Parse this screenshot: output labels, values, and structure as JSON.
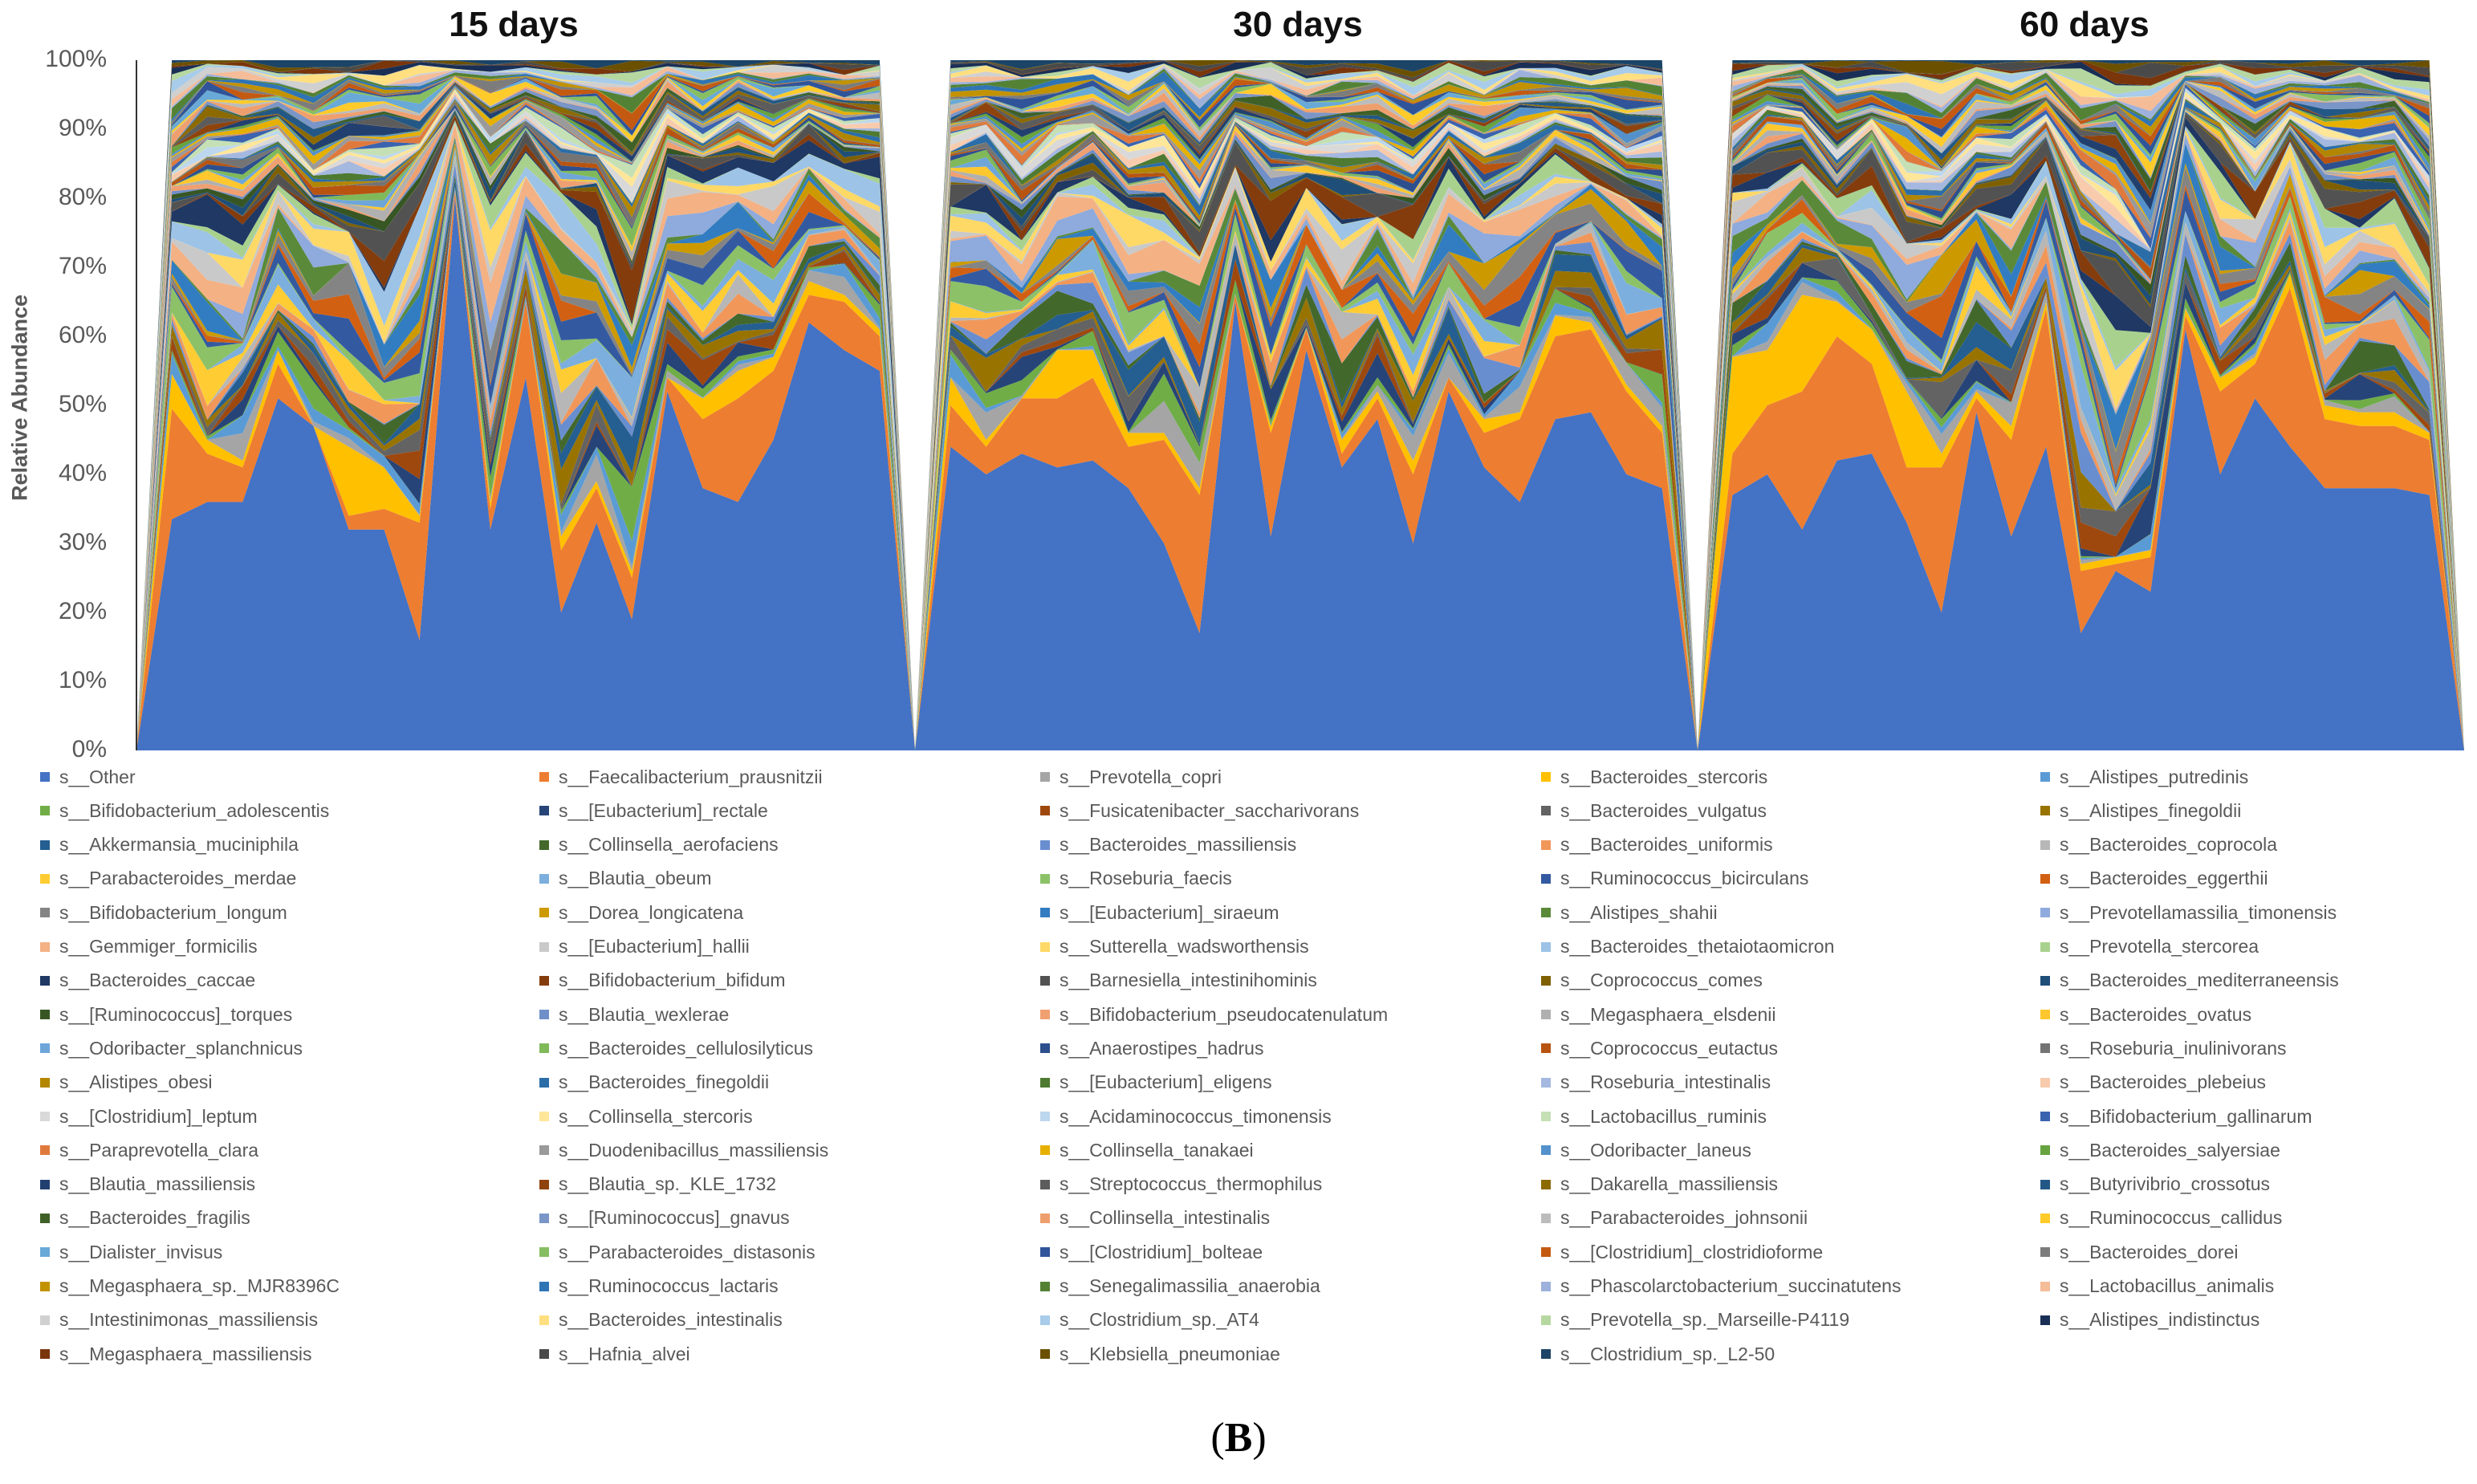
{
  "figure_label": "(B)",
  "figure_label_letter": "B",
  "chart_data": {
    "type": "area",
    "stacked": true,
    "percent": true,
    "ylabel": "Relative Abundance",
    "yticks": [
      "0%",
      "10%",
      "20%",
      "30%",
      "40%",
      "50%",
      "60%",
      "70%",
      "80%",
      "90%",
      "100%"
    ],
    "ylim": [
      0,
      100
    ],
    "grid": false,
    "legend_position": "bottom",
    "panels": [
      {
        "title": "15 days",
        "samples": 23,
        "values": {
          "s__Other": [
            0,
            33.5,
            36,
            36,
            51,
            47,
            32,
            32,
            16,
            80,
            32,
            54,
            20,
            33,
            19,
            52,
            38,
            36,
            45,
            62,
            58,
            55,
            0
          ],
          "s__Faecalibacterium_prausnitzii": [
            0,
            16,
            7,
            5,
            5,
            0,
            2,
            3,
            17,
            1,
            3,
            11,
            9,
            5,
            6,
            2,
            10,
            15,
            10,
            4,
            7,
            5,
            0
          ],
          "s__Bacteroides_stercoris": [
            0,
            5,
            2,
            1,
            2,
            0,
            10,
            6,
            1,
            0,
            1,
            0,
            2,
            1,
            1,
            0,
            3,
            4,
            2,
            2,
            1,
            1,
            0
          ]
        }
      },
      {
        "title": "30 days",
        "samples": 23,
        "values": {
          "s__Other": [
            0,
            44,
            40,
            43,
            41,
            42,
            38,
            30,
            17,
            65,
            31,
            58,
            41,
            48,
            30,
            52,
            41,
            36,
            48,
            49,
            40,
            38,
            0
          ],
          "s__Faecalibacterium_prausnitzii": [
            0,
            6,
            4,
            8,
            10,
            12,
            6,
            15,
            20,
            1,
            15,
            3,
            2,
            3,
            10,
            2,
            5,
            12,
            12,
            12,
            12,
            8,
            0
          ],
          "s__Bacteroides_stercoris": [
            0,
            4,
            1,
            0,
            7,
            4,
            2,
            1,
            1,
            0,
            1,
            0,
            2,
            1,
            2,
            0,
            2,
            1,
            3,
            1,
            1,
            1,
            0
          ]
        }
      },
      {
        "title": "60 days",
        "samples": 23,
        "values": {
          "s__Other": [
            0,
            37,
            40,
            32,
            42,
            43,
            33,
            20,
            49,
            31,
            44,
            17,
            26,
            23,
            61,
            40,
            51,
            44,
            38,
            38,
            38,
            37,
            0
          ],
          "s__Faecalibacterium_prausnitzii": [
            0,
            6,
            10,
            20,
            18,
            13,
            8,
            21,
            2,
            14,
            20,
            9,
            1,
            5,
            2,
            12,
            5,
            23,
            10,
            9,
            9,
            8,
            0
          ],
          "s__Bacteroides_stercoris": [
            0,
            14,
            8,
            14,
            5,
            5,
            11,
            2,
            1,
            2,
            1,
            1,
            1,
            1,
            1,
            2,
            1,
            2,
            2,
            2,
            2,
            1,
            0
          ]
        }
      }
    ],
    "legend": [
      {
        "label": "s__Other",
        "color": "#4472c4"
      },
      {
        "label": "s__Faecalibacterium_prausnitzii",
        "color": "#ed7d31"
      },
      {
        "label": "s__Prevotella_copri",
        "color": "#a5a5a5"
      },
      {
        "label": "s__Bacteroides_stercoris",
        "color": "#ffc000"
      },
      {
        "label": "s__Alistipes_putredinis",
        "color": "#5b9bd5"
      },
      {
        "label": "s__Bifidobacterium_adolescentis",
        "color": "#70ad47"
      },
      {
        "label": "s__[Eubacterium]_rectale",
        "color": "#264478"
      },
      {
        "label": "s__Fusicatenibacter_saccharivorans",
        "color": "#9e480e"
      },
      {
        "label": "s__Bacteroides_vulgatus",
        "color": "#636363"
      },
      {
        "label": "s__Alistipes_finegoldii",
        "color": "#997300"
      },
      {
        "label": "s__Akkermansia_muciniphila",
        "color": "#255e91"
      },
      {
        "label": "s__Collinsella_aerofaciens",
        "color": "#43682b"
      },
      {
        "label": "s__Bacteroides_massiliensis",
        "color": "#698ed0"
      },
      {
        "label": "s__Bacteroides_uniformis",
        "color": "#f1975a"
      },
      {
        "label": "s__Bacteroides_coprocola",
        "color": "#b7b7b7"
      },
      {
        "label": "s__Parabacteroides_merdae",
        "color": "#ffcd33"
      },
      {
        "label": "s__Blautia_obeum",
        "color": "#7cafdd"
      },
      {
        "label": "s__Roseburia_faecis",
        "color": "#8cc168"
      },
      {
        "label": "s__Ruminococcus_bicirculans",
        "color": "#335aa1"
      },
      {
        "label": "s__Bacteroides_eggerthii",
        "color": "#d26012"
      },
      {
        "label": "s__Bifidobacterium_longum",
        "color": "#848484"
      },
      {
        "label": "s__Dorea_longicatena",
        "color": "#cc9a00"
      },
      {
        "label": "s__[Eubacterium]_siraeum",
        "color": "#327dc2"
      },
      {
        "label": "s__Alistipes_shahii",
        "color": "#5a8a39"
      },
      {
        "label": "s__Prevotellamassilia_timonensis",
        "color": "#8faadc"
      },
      {
        "label": "s__Gemmiger_formicilis",
        "color": "#f4b183"
      },
      {
        "label": "s__[Eubacterium]_hallii",
        "color": "#c9c9c9"
      },
      {
        "label": "s__Sutterella_wadsworthensis",
        "color": "#ffd966"
      },
      {
        "label": "s__Bacteroides_thetaiotaomicron",
        "color": "#9dc3e6"
      },
      {
        "label": "s__Prevotella_stercorea",
        "color": "#a9d18e"
      },
      {
        "label": "s__Bacteroides_caccae",
        "color": "#1f3864"
      },
      {
        "label": "s__Bifidobacterium_bifidum",
        "color": "#843c0c"
      },
      {
        "label": "s__Barnesiella_intestinihominis",
        "color": "#525252"
      },
      {
        "label": "s__Coprococcus_comes",
        "color": "#7f6000"
      },
      {
        "label": "s__Bacteroides_mediterraneensis",
        "color": "#1f4e79"
      },
      {
        "label": "s__[Ruminococcus]_torques",
        "color": "#375623"
      },
      {
        "label": "s__Blautia_wexlerae",
        "color": "#6f8fc9"
      },
      {
        "label": "s__Bifidobacterium_pseudocatenulatum",
        "color": "#f0a070"
      },
      {
        "label": "s__Megasphaera_elsdenii",
        "color": "#b0b0b0"
      },
      {
        "label": "s__Bacteroides_ovatus",
        "color": "#ffc72e"
      },
      {
        "label": "s__Odoribacter_splanchnicus",
        "color": "#6ea6da"
      },
      {
        "label": "s__Bacteroides_cellulosilyticus",
        "color": "#80b95a"
      },
      {
        "label": "s__Anaerostipes_hadrus",
        "color": "#2d4f8e"
      },
      {
        "label": "s__Coprococcus_eutactus",
        "color": "#b85410"
      },
      {
        "label": "s__Roseburia_inulinivorans",
        "color": "#747474"
      },
      {
        "label": "s__Alistipes_obesi",
        "color": "#b38600"
      },
      {
        "label": "s__Bacteroides_finegoldii",
        "color": "#2b6da9"
      },
      {
        "label": "s__[Eubacterium]_eligens",
        "color": "#4e7a31"
      },
      {
        "label": "s__Roseburia_intestinalis",
        "color": "#a4b8e0"
      },
      {
        "label": "s__Bacteroides_plebeius",
        "color": "#f8cbad"
      },
      {
        "label": "s__[Clostridium]_leptum",
        "color": "#d9d9d9"
      },
      {
        "label": "s__Collinsella_stercoris",
        "color": "#ffe699"
      },
      {
        "label": "s__Acidaminococcus_timonensis",
        "color": "#bdd7ee"
      },
      {
        "label": "s__Lactobacillus_ruminis",
        "color": "#c5e0b4"
      },
      {
        "label": "s__Bifidobacterium_gallinarum",
        "color": "#3a63b0"
      },
      {
        "label": "s__Paraprevotella_clara",
        "color": "#e07a3c"
      },
      {
        "label": "s__Duodenibacillus_massiliensis",
        "color": "#9a9a9a"
      },
      {
        "label": "s__Collinsella_tanakaei",
        "color": "#e6b000"
      },
      {
        "label": "s__Odoribacter_laneus",
        "color": "#5491cc"
      },
      {
        "label": "s__Bacteroides_salyersiae",
        "color": "#67a33f"
      },
      {
        "label": "s__Blautia_massiliensis",
        "color": "#22406f"
      },
      {
        "label": "s__Blautia_sp._KLE_1732",
        "color": "#8f430d"
      },
      {
        "label": "s__Streptococcus_thermophilus",
        "color": "#5c5c5c"
      },
      {
        "label": "s__Dakarella_massiliensis",
        "color": "#8c6a00"
      },
      {
        "label": "s__Butyrivibrio_crossotus",
        "color": "#235886"
      },
      {
        "label": "s__Bacteroides_fragilis",
        "color": "#3f6127"
      },
      {
        "label": "s__[Ruminococcus]_gnavus",
        "color": "#7a95c8"
      },
      {
        "label": "s__Collinsella_intestinalis",
        "color": "#ee9f6d"
      },
      {
        "label": "s__Parabacteroides_johnsonii",
        "color": "#bcbcbc"
      },
      {
        "label": "s__Ruminococcus_callidus",
        "color": "#ffcb2a"
      },
      {
        "label": "s__Dialister_invisus",
        "color": "#68a9d8"
      },
      {
        "label": "s__Parabacteroides_distasonis",
        "color": "#87be62"
      },
      {
        "label": "s__[Clostridium]_bolteae",
        "color": "#30549a"
      },
      {
        "label": "s__[Clostridium]_clostridioforme",
        "color": "#c45a11"
      },
      {
        "label": "s__Bacteroides_dorei",
        "color": "#7c7c7c"
      },
      {
        "label": "s__Megasphaera_sp._MJR8396C",
        "color": "#c29200"
      },
      {
        "label": "s__Ruminococcus_lactaris",
        "color": "#2f74b5"
      },
      {
        "label": "s__Senegalimassilia_anaerobia",
        "color": "#548235"
      },
      {
        "label": "s__Phascolarctobacterium_succinatutens",
        "color": "#9db1dc"
      },
      {
        "label": "s__Lactobacillus_animalis",
        "color": "#f5bc98"
      },
      {
        "label": "s__Intestinimonas_massiliensis",
        "color": "#d0d0d0"
      },
      {
        "label": "s__Bacteroides_intestinalis",
        "color": "#ffdf80"
      },
      {
        "label": "s__Clostridium_sp._AT4",
        "color": "#a8cce9"
      },
      {
        "label": "s__Prevotella_sp._Marseille-P4119",
        "color": "#b6d8a0"
      },
      {
        "label": "s__Alistipes_indistinctus",
        "color": "#1a2f55"
      },
      {
        "label": "s__Megasphaera_massiliensis",
        "color": "#7a350b"
      },
      {
        "label": "s__Hafnia_alvei",
        "color": "#4a4a4a"
      },
      {
        "label": "s__Klebsiella_pneumoniae",
        "color": "#6b5000"
      },
      {
        "label": "s__Clostridium_sp._L2-50",
        "color": "#1b4467"
      }
    ]
  }
}
